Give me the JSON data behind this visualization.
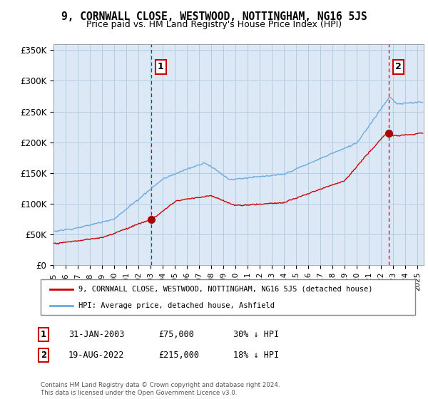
{
  "title": "9, CORNWALL CLOSE, WESTWOOD, NOTTINGHAM, NG16 5JS",
  "subtitle": "Price paid vs. HM Land Registry's House Price Index (HPI)",
  "ylim": [
    0,
    360000
  ],
  "xlim_start": 1995.0,
  "xlim_end": 2025.5,
  "sale1_date": 2003.08,
  "sale1_price": 75000,
  "sale1_label": "1",
  "sale2_date": 2022.63,
  "sale2_price": 215000,
  "sale2_label": "2",
  "legend_line1": "9, CORNWALL CLOSE, WESTWOOD, NOTTINGHAM, NG16 5JS (detached house)",
  "legend_line2": "HPI: Average price, detached house, Ashfield",
  "footnote": "Contains HM Land Registry data © Crown copyright and database right 2024.\nThis data is licensed under the Open Government Licence v3.0.",
  "hpi_color": "#6aabe0",
  "price_color": "#cc0000",
  "sale_marker_color": "#aa0000",
  "vline_color": "#cc0000",
  "background_color": "#ffffff",
  "plot_bg_color": "#dce8f5",
  "grid_color": "#b0c8e0"
}
